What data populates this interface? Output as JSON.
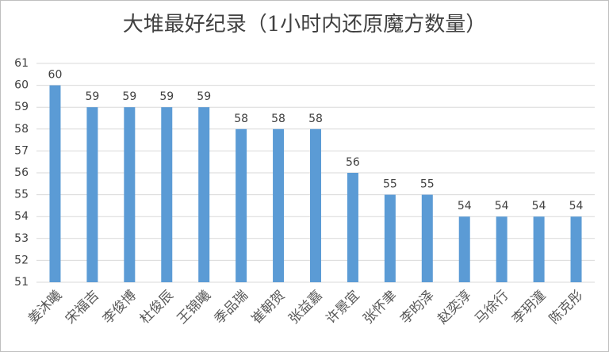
{
  "chart_data": {
    "type": "bar",
    "title": "大堆最好纪录（1小时内还原魔方数量）",
    "categories": [
      "姜沐曦",
      "宋福吉",
      "李俊博",
      "杜俊辰",
      "王锦曦",
      "季品瑞",
      "崔朝贺",
      "张益嘉",
      "许景宜",
      "张怀聿",
      "李昀泽",
      "赵奕淳",
      "马徐行",
      "李玥潼",
      "陈克彤"
    ],
    "values": [
      60,
      59,
      59,
      59,
      59,
      58,
      58,
      58,
      56,
      55,
      55,
      54,
      54,
      54,
      54
    ],
    "color": "#5b9bd5",
    "ylim": [
      51,
      61
    ],
    "yticks": [
      51,
      52,
      53,
      54,
      55,
      56,
      57,
      58,
      59,
      60,
      61
    ],
    "grid": true
  }
}
